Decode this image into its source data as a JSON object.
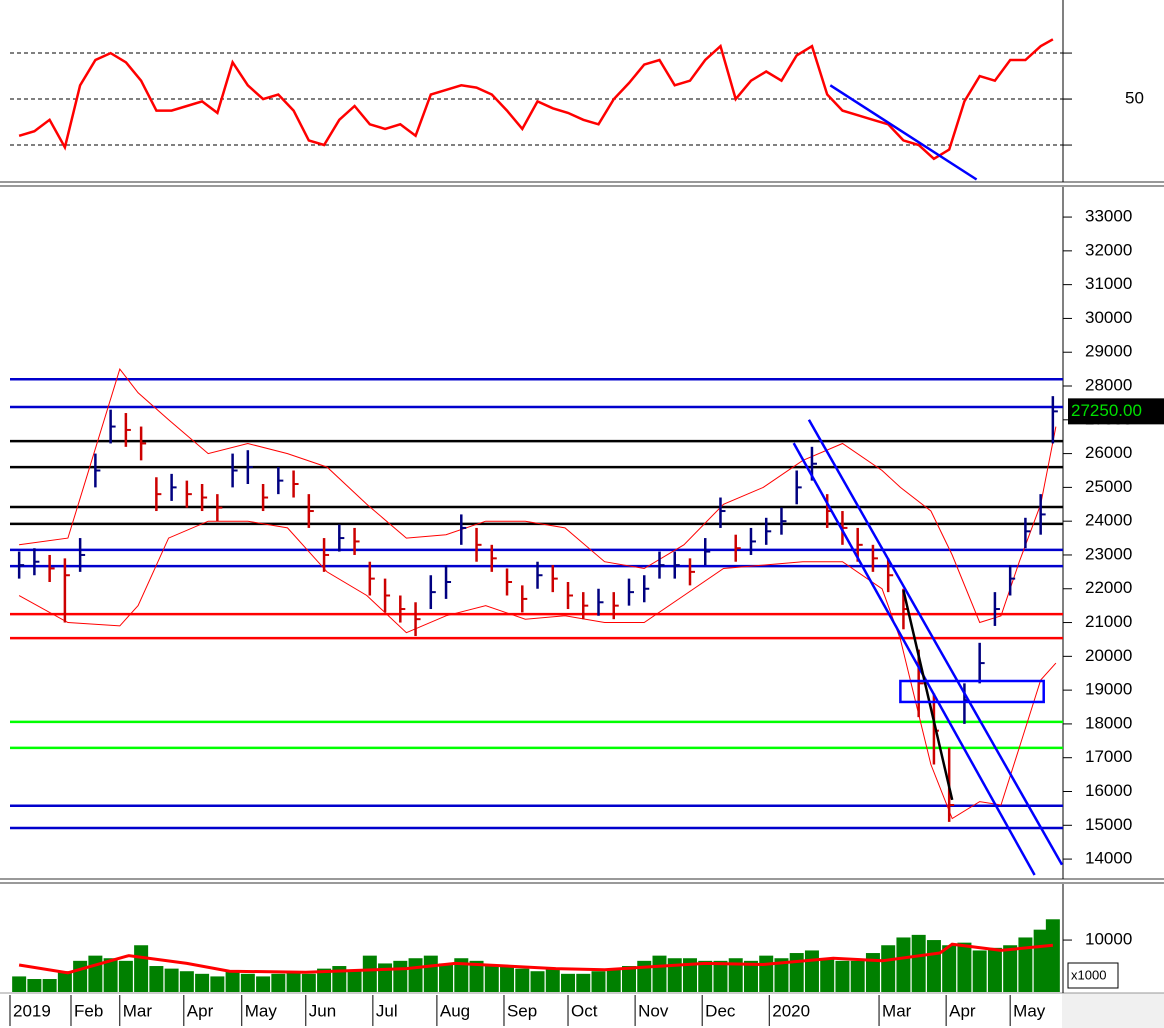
{
  "xaxis": {
    "xlim": [
      0,
      345
    ],
    "xticks": [
      {
        "value": 0,
        "label": "2019"
      },
      {
        "value": 20,
        "label": "Feb"
      },
      {
        "value": 36,
        "label": "Mar"
      },
      {
        "value": 57,
        "label": "Apr"
      },
      {
        "value": 76,
        "label": "May"
      },
      {
        "value": 97,
        "label": "Jun"
      },
      {
        "value": 119,
        "label": "Jul"
      },
      {
        "value": 140,
        "label": "Aug"
      },
      {
        "value": 162,
        "label": "Sep"
      },
      {
        "value": 183,
        "label": "Oct"
      },
      {
        "value": 205,
        "label": "Nov"
      },
      {
        "value": 227,
        "label": "Dec"
      },
      {
        "value": 249,
        "label": "2020"
      },
      {
        "value": 285,
        "label": "Mar"
      },
      {
        "value": 307,
        "label": "Apr"
      },
      {
        "value": 328,
        "label": "May"
      }
    ]
  },
  "chart_data": [
    {
      "type": "line",
      "ylim": [
        14.8,
        90.9
      ],
      "yticks": [
        50
      ],
      "levels": [
        30,
        50,
        70
      ],
      "x": [
        3,
        8,
        13,
        18,
        23,
        28,
        33,
        38,
        43,
        48,
        53,
        58,
        63,
        68,
        73,
        78,
        83,
        88,
        93,
        98,
        103,
        108,
        113,
        118,
        123,
        128,
        133,
        138,
        143,
        148,
        153,
        158,
        163,
        168,
        173,
        178,
        183,
        188,
        193,
        198,
        203,
        208,
        213,
        218,
        223,
        228,
        233,
        238,
        243,
        248,
        253,
        258,
        263,
        268,
        273,
        278,
        283,
        288,
        293,
        298,
        303,
        308,
        313,
        318,
        323,
        328,
        333,
        338,
        342
      ],
      "series": [
        {
          "color": "#ff0000",
          "values": [
            34,
            36,
            41,
            29,
            56,
            67,
            70,
            66,
            58,
            45,
            45,
            47,
            49,
            44,
            66,
            56,
            50,
            52,
            45,
            32,
            30,
            41,
            47,
            39,
            37,
            39,
            34,
            52,
            54,
            56,
            55,
            52,
            45,
            37,
            49,
            46,
            44,
            41,
            39,
            50,
            57,
            65,
            67,
            56,
            58,
            67,
            73,
            50,
            58,
            62,
            58,
            69,
            73,
            52,
            45,
            43,
            41,
            39,
            32,
            30,
            24,
            28,
            49,
            60,
            58,
            67,
            67,
            73,
            76
          ]
        }
      ],
      "trendlines": [
        {
          "color": "#0000ff",
          "x": [
            269,
            317
          ],
          "values": [
            56,
            15
          ]
        }
      ]
    },
    {
      "type": "ohlc",
      "ylim": [
        13440,
        33860
      ],
      "yticks": [
        14000,
        15000,
        16000,
        17000,
        18000,
        19000,
        20000,
        21000,
        22000,
        23000,
        24000,
        25000,
        26000,
        27000,
        28000,
        29000,
        30000,
        31000,
        32000,
        33000
      ],
      "x": [
        3,
        8,
        13,
        18,
        23,
        28,
        33,
        38,
        43,
        48,
        53,
        58,
        63,
        68,
        73,
        78,
        83,
        88,
        93,
        98,
        103,
        108,
        113,
        118,
        123,
        128,
        133,
        138,
        143,
        148,
        153,
        158,
        163,
        168,
        173,
        178,
        183,
        188,
        193,
        198,
        203,
        208,
        213,
        218,
        223,
        228,
        233,
        238,
        243,
        248,
        253,
        258,
        263,
        268,
        273,
        278,
        283,
        288,
        293,
        298,
        303,
        308,
        313,
        318,
        323,
        328,
        333,
        338,
        342
      ],
      "high": [
        23100,
        23200,
        23000,
        22900,
        23500,
        26000,
        27300,
        27200,
        26800,
        25300,
        25400,
        25200,
        25100,
        24800,
        26000,
        26100,
        25100,
        25600,
        25500,
        24800,
        23500,
        23900,
        23800,
        22800,
        22300,
        21800,
        21600,
        22400,
        22700,
        24200,
        23800,
        23300,
        22600,
        22100,
        22800,
        22700,
        22200,
        21900,
        22000,
        21900,
        22300,
        22400,
        23100,
        23100,
        22900,
        23500,
        24700,
        23600,
        23800,
        24100,
        24400,
        25500,
        26200,
        24800,
        24300,
        23800,
        23300,
        22900,
        22000,
        20200,
        18900,
        17300,
        19200,
        20400,
        21900,
        22700,
        24100,
        24800,
        27700
      ],
      "low": [
        22300,
        22400,
        22200,
        21000,
        22500,
        25000,
        26300,
        26200,
        25800,
        24300,
        24600,
        24400,
        24300,
        24000,
        25000,
        25100,
        24300,
        24800,
        24700,
        23800,
        22500,
        23100,
        23000,
        21800,
        21300,
        21000,
        20600,
        21400,
        21700,
        23300,
        22800,
        22500,
        21800,
        21300,
        22000,
        21900,
        21400,
        21100,
        21200,
        21100,
        21500,
        21600,
        22300,
        22300,
        22100,
        22700,
        23800,
        22800,
        23000,
        23300,
        23600,
        24500,
        25200,
        23800,
        23300,
        22800,
        22500,
        21900,
        20800,
        18200,
        16800,
        15100,
        18000,
        19200,
        20900,
        21800,
        23200,
        23600,
        26300
      ],
      "close": [
        22700,
        22800,
        22600,
        22400,
        23000,
        25500,
        26800,
        26700,
        26300,
        24800,
        25000,
        24800,
        24700,
        24400,
        25500,
        25600,
        24700,
        25200,
        25100,
        24300,
        23000,
        23500,
        23400,
        22300,
        21800,
        21400,
        21100,
        21900,
        22200,
        23800,
        23300,
        22900,
        22200,
        21700,
        22400,
        22300,
        21800,
        21500,
        21600,
        21500,
        21900,
        22000,
        22700,
        22700,
        22500,
        23100,
        24300,
        23200,
        23400,
        23700,
        24000,
        25000,
        25700,
        24300,
        23800,
        23300,
        22900,
        22400,
        21400,
        19200,
        17800,
        15600,
        18700,
        19800,
        21400,
        22300,
        23700,
        24200,
        27250
      ],
      "colors": {
        "up": "#000080",
        "down": "#cc0000"
      },
      "bands": [
        {
          "color": "#ff0000",
          "x": [
            3,
            19,
            36,
            42,
            52,
            65,
            78,
            91,
            104,
            117,
            130,
            143,
            156,
            169,
            182,
            195,
            208,
            221,
            234,
            247,
            260,
            273,
            286,
            292,
            302,
            309,
            318,
            325,
            331,
            338,
            343
          ],
          "values": [
            23300,
            23500,
            28500,
            27800,
            27000,
            26000,
            26300,
            26000,
            25600,
            24500,
            23500,
            23600,
            24000,
            24000,
            23800,
            22800,
            22600,
            23300,
            24500,
            25000,
            25800,
            26300,
            25500,
            25000,
            24300,
            23000,
            21000,
            21200,
            22800,
            24500,
            26800
          ]
        },
        {
          "color": "#ff0000",
          "x": [
            3,
            19,
            36,
            42,
            52,
            65,
            78,
            91,
            104,
            117,
            130,
            143,
            156,
            169,
            182,
            195,
            208,
            221,
            234,
            247,
            260,
            273,
            286,
            292,
            302,
            309,
            318,
            325,
            331,
            338,
            343
          ],
          "values": [
            21800,
            21000,
            20900,
            21500,
            23500,
            24000,
            24000,
            23800,
            22500,
            21800,
            20700,
            21200,
            21500,
            21100,
            21200,
            21000,
            21000,
            21800,
            22600,
            22700,
            22800,
            22800,
            22000,
            20500,
            16800,
            15200,
            15700,
            15600,
            17300,
            19300,
            19800
          ]
        }
      ],
      "levels": [
        {
          "value": 28200,
          "color": "#0000cc"
        },
        {
          "value": 27380,
          "color": "#0000cc"
        },
        {
          "value": 26370,
          "color": "#000000"
        },
        {
          "value": 25600,
          "color": "#000000"
        },
        {
          "value": 24420,
          "color": "#000000"
        },
        {
          "value": 23920,
          "color": "#000000"
        },
        {
          "value": 23150,
          "color": "#0000cc"
        },
        {
          "value": 22670,
          "color": "#0000cc"
        },
        {
          "value": 21250,
          "color": "#ff0000"
        },
        {
          "value": 20540,
          "color": "#ff0000"
        },
        {
          "value": 18060,
          "color": "#00ff00"
        },
        {
          "value": 17290,
          "color": "#00ff00"
        },
        {
          "value": 15580,
          "color": "#0000cc"
        },
        {
          "value": 14920,
          "color": "#0000cc"
        }
      ],
      "trendlines": [
        {
          "color": "#0000ff",
          "x": [
            257,
            336
          ],
          "values": [
            26310,
            13530
          ]
        },
        {
          "color": "#0000ff",
          "x": [
            262,
            345
          ],
          "values": [
            27000,
            13830
          ]
        },
        {
          "color": "#000000",
          "x": [
            293,
            309
          ],
          "values": [
            21960,
            15750
          ]
        }
      ],
      "box": {
        "color": "#0000ff",
        "x": [
          292,
          339
        ],
        "values": [
          18650,
          19270
        ]
      },
      "last_price": {
        "value": 27250,
        "label": "27250.00"
      }
    },
    {
      "type": "bar",
      "ylim": [
        0,
        20600
      ],
      "yticks": [
        10000
      ],
      "unit": "x1000",
      "color": "#008000",
      "x": [
        3,
        8,
        13,
        18,
        23,
        28,
        33,
        38,
        43,
        48,
        53,
        58,
        63,
        68,
        73,
        78,
        83,
        88,
        93,
        98,
        103,
        108,
        113,
        118,
        123,
        128,
        133,
        138,
        143,
        148,
        153,
        158,
        163,
        168,
        173,
        178,
        183,
        188,
        193,
        198,
        203,
        208,
        213,
        218,
        223,
        228,
        233,
        238,
        243,
        248,
        253,
        258,
        263,
        268,
        273,
        278,
        283,
        288,
        293,
        298,
        303,
        308,
        313,
        318,
        323,
        328,
        333,
        338,
        342
      ],
      "values": [
        3000,
        2500,
        2500,
        4000,
        6000,
        7000,
        6500,
        6000,
        9000,
        5000,
        4500,
        4000,
        3500,
        3000,
        4000,
        3500,
        3000,
        3500,
        4000,
        3500,
        4500,
        5000,
        4000,
        7000,
        5500,
        6000,
        6500,
        7000,
        5500,
        6500,
        6000,
        5000,
        5000,
        4500,
        4000,
        4500,
        3500,
        3500,
        4000,
        4500,
        5000,
        6000,
        7000,
        6500,
        6500,
        6000,
        6000,
        6500,
        6000,
        7000,
        6500,
        7500,
        8000,
        6500,
        6000,
        6000,
        7500,
        9000,
        10500,
        11000,
        10000,
        9000,
        9500,
        8000,
        8500,
        9000,
        10500,
        12000,
        14000
      ],
      "ma": {
        "color": "#ff0000",
        "x": [
          3,
          19,
          39,
          58,
          72,
          97,
          130,
          146,
          179,
          195,
          228,
          247,
          270,
          286,
          305,
          309,
          325,
          342
        ],
        "values": [
          5200,
          3700,
          7000,
          5500,
          4000,
          3800,
          4500,
          5500,
          4500,
          4300,
          5500,
          5300,
          6500,
          6000,
          7500,
          9200,
          8000,
          9000
        ]
      }
    }
  ]
}
